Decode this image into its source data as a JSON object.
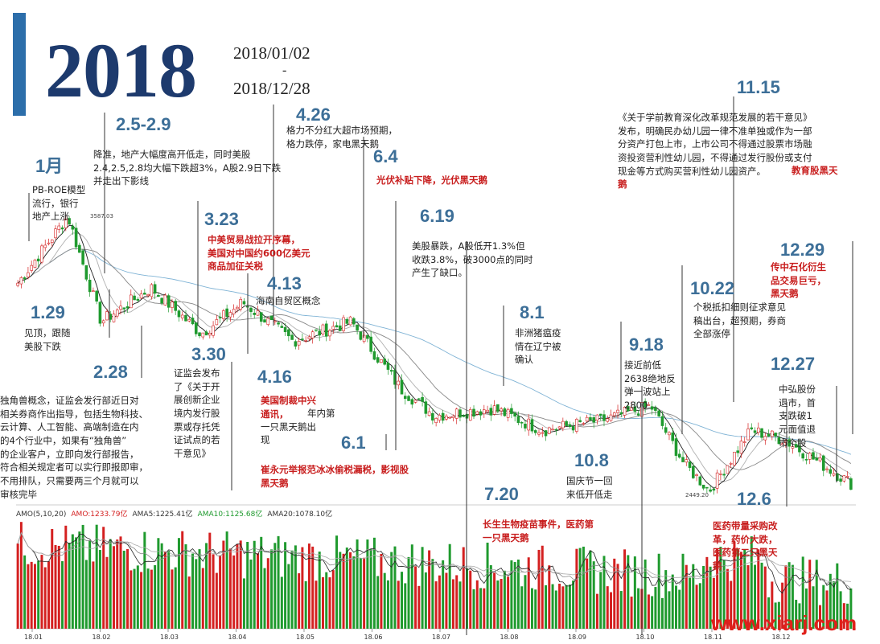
{
  "header": {
    "year": "2018",
    "date_start": "2018/01/02",
    "date_sep": "-",
    "date_end": "2018/12/28"
  },
  "price_labels": {
    "high": "3587.03",
    "low": "2449.20"
  },
  "volume_legend": {
    "amo": "AMO(5,10,20)",
    "amo_value": "AMO:1233.79亿",
    "ma5": "AMA5:1225.41亿",
    "ma10": "AMA10:1125.68亿",
    "ma20": "AMA20:1078.10亿"
  },
  "x_ticks": [
    "18.01",
    "18.02",
    "18.03",
    "18.04",
    "18.05",
    "18.06",
    "18.07",
    "18.08",
    "18.09",
    "18.10",
    "18.11",
    "18.12"
  ],
  "watermark": "www.xiarj.com",
  "annotations": [
    {
      "date": "1月",
      "note": "PB-ROE模型\n流行，银行\n地产上涨",
      "red": ""
    },
    {
      "date": "1.29",
      "note": "见顶，跟随\n美股下跌",
      "red": ""
    },
    {
      "date": "2.5-2.9",
      "note": "降准，地产大幅度高开低走，同时美股\n2.4,2.5,2.8均大幅下跌超3%，A股2.9日下跌\n并走出下影线",
      "red": ""
    },
    {
      "date": "2.28",
      "note": "独角兽概念，证监会发行部近日对\n相关券商作出指导，包括生物科技、\n云计算、人工智能、高端制造在内\n的4个行业中，如果有“独角兽”\n的企业客户，立即向发行部报告，\n符合相关规定者可以实行即报即审，\n不用排队，只需要两三个月就可以\n审核完毕",
      "red": ""
    },
    {
      "date": "3.23",
      "note": "",
      "red": "中美贸易战拉开序幕，\n美国对中国约600亿美元\n商品加征关税"
    },
    {
      "date": "3.30",
      "note": "证监会发布\n了《关于开\n展创新企业\n境内发行股\n票或存托凭\n证试点的若\n干意见》",
      "red": ""
    },
    {
      "date": "4.13",
      "note": "海南自贸区概念",
      "red": ""
    },
    {
      "date": "4.16",
      "note": "年内第\n一只黑天鹅出\n现",
      "red": "美国制裁中兴\n通讯，"
    },
    {
      "date": "4.26",
      "note": "格力不分红大超市场预期，\n格力跌停，家电黑天鹅",
      "red": ""
    },
    {
      "date": "6.4",
      "note": "",
      "red": "光伏补贴下降，光伏黑天鹅"
    },
    {
      "date": "6.1",
      "note": "",
      "red": "崔永元举报范冰冰偷税漏税，影视股\n黑天鹅"
    },
    {
      "date": "6.19",
      "note": "美股暴跌，A股低开1.3%但\n收跌3.8%，破3000点的同时\n产生了缺口。",
      "red": ""
    },
    {
      "date": "7.20",
      "note": "",
      "red": "长生生物疫苗事件，医药第\n一只黑天鹅"
    },
    {
      "date": "8.1",
      "note": "非洲猪瘟疫\n情在辽宁被\n确认",
      "red": ""
    },
    {
      "date": "9.18",
      "note": "接近前低\n2638绝地反\n弹一波站上\n2800",
      "red": ""
    },
    {
      "date": "10.8",
      "note": "国庆节一回\n来低开低走",
      "red": ""
    },
    {
      "date": "10.22",
      "note": "个税抵扣细则征求意见\n稿出台，超预期，券商\n全部涨停",
      "red": ""
    },
    {
      "date": "11.15",
      "note": "《关于学前教育深化改革规范发展的若干意见》\n发布，明确民办幼儿园一律不准单独或作为一部\n分资产打包上市，上市公司不得通过股票市场融\n资投资营利性幼儿园，不得通过发行股份或支付\n现金等方式购买营利性幼儿园资产。",
      "red": "教育股黑天\n鹅"
    },
    {
      "date": "12.6",
      "note": "",
      "red": "医药带量采购改\n革，药价大跌，\n医药第二只黑天\n鹅"
    },
    {
      "date": "12.27",
      "note": "中弘股份\n退市，首\n支跌破1\n元面值退\n市个股",
      "red": ""
    },
    {
      "date": "12.29",
      "note": "",
      "red": "传中石化衍生\n品交易巨亏，\n黑天鹅"
    }
  ],
  "chart_data": {
    "type": "line",
    "title": "2018",
    "subtitle": "2018/01/02 - 2018/12/28",
    "xlabel": "",
    "ylabel": "",
    "x": [
      "18.01",
      "18.02",
      "18.03",
      "18.04",
      "18.05",
      "18.06",
      "18.07",
      "18.08",
      "18.09",
      "18.10",
      "18.11",
      "18.12"
    ],
    "series": [
      {
        "name": "",
        "values": [
          3420,
          3410,
          3290,
          3130,
          3110,
          3050,
          2780,
          2790,
          2740,
          2650,
          2680,
          2500
        ]
      }
    ],
    "extremes": {
      "high": 3587.03,
      "low": 2449.2
    },
    "ylim": [
      2400,
      3650
    ],
    "volume_panel": {
      "legend": [
        "AMO(5,10,20)",
        "AMO:1233.79亿",
        "AMA5:1225.41亿",
        "AMA10:1125.68亿",
        "AMA20:1078.10亿"
      ],
      "latest_values": {
        "AMO": 1233.79,
        "AMA5": 1225.41,
        "AMA10": 1125.68,
        "AMA20": 1078.1
      },
      "unit": "亿"
    },
    "colors": {
      "up": "#d42020",
      "down": "#1f9a2e",
      "ma_short": "#222222",
      "ma_mid": "#888888",
      "ma_long": "#7fb3d5",
      "accent": "#2c6eaa"
    }
  }
}
